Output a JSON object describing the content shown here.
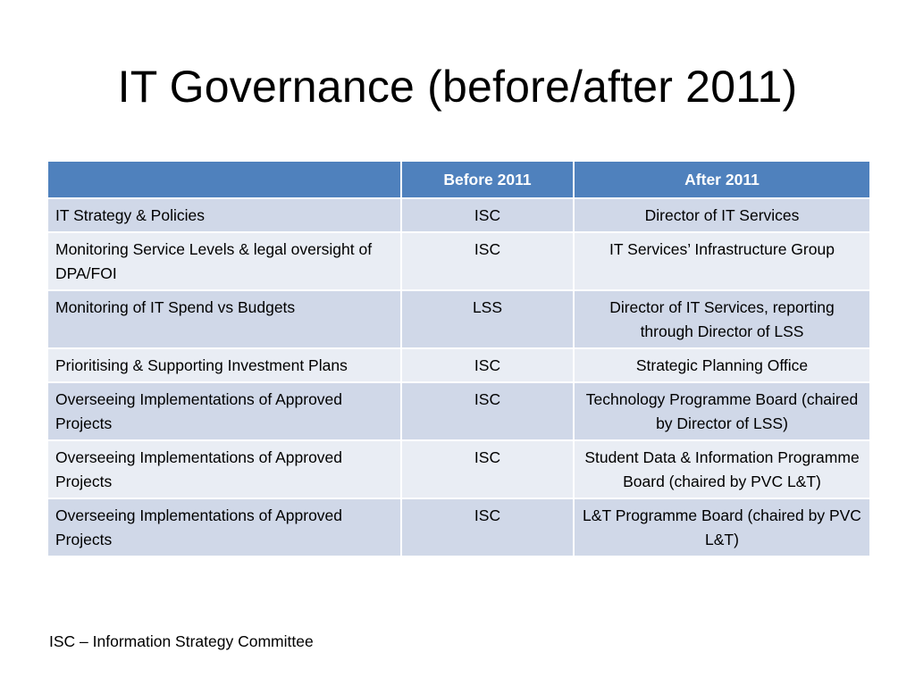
{
  "slide": {
    "title": "IT Governance (before/after 2011)",
    "footnote": "ISC – Information Strategy Committee"
  },
  "table": {
    "headers": [
      "",
      "Before 2011",
      "After 2011"
    ],
    "rows": [
      [
        "IT Strategy & Policies",
        "ISC",
        "Director of IT Services"
      ],
      [
        "Monitoring Service Levels & legal oversight of DPA/FOI",
        "ISC",
        "IT Services’ Infrastructure Group"
      ],
      [
        "Monitoring of IT Spend vs Budgets",
        "LSS",
        "Director of IT Services, reporting through Director of LSS"
      ],
      [
        "Prioritising & Supporting Investment Plans",
        "ISC",
        "Strategic Planning Office"
      ],
      [
        "Overseeing Implementations of Approved Projects",
        "ISC",
        "Technology Programme Board (chaired by Director of LSS)"
      ],
      [
        "Overseeing Implementations of Approved Projects",
        "ISC",
        "Student Data & Information Programme Board (chaired by PVC L&T)"
      ],
      [
        "Overseeing Implementations of Approved Projects",
        "ISC",
        "L&T Programme Board (chaired by PVC L&T)"
      ]
    ]
  },
  "colors": {
    "header_bg": "#4f81bd",
    "row_odd_bg": "#d0d8e8",
    "row_even_bg": "#e9edf4"
  }
}
